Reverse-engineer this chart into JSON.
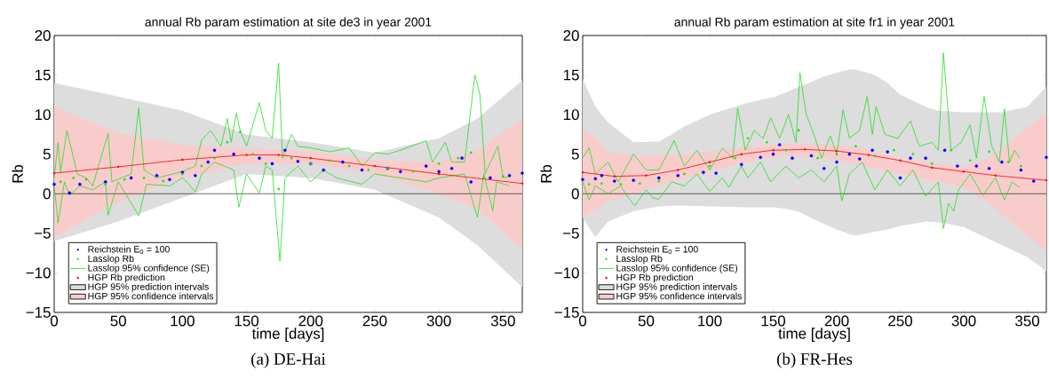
{
  "chart_data": [
    {
      "type": "line",
      "title": "annual Rb param estimation at site de3 in year 2001",
      "xlabel": "time [days]",
      "ylabel": "Rb",
      "annotations": [
        "(a) DE-Hai"
      ],
      "xlim": [
        0,
        365
      ],
      "ylim": [
        -15,
        20
      ],
      "xticks": [
        0,
        50,
        100,
        150,
        200,
        250,
        300,
        350
      ],
      "yticks": [
        {
          "value": -15,
          "label": "−15"
        },
        {
          "value": -10,
          "label": "−10"
        },
        {
          "value": -5,
          "label": "−5"
        },
        0,
        5,
        10,
        15,
        20
      ],
      "legend": "bottom left",
      "grid": false,
      "ref_lines": [
        {
          "axis": "y",
          "value": 0,
          "color": "#000000"
        }
      ],
      "series": [
        {
          "name": "Reichstein E$_{0}$ = 100",
          "type": "scatter",
          "color": "#0000ff",
          "x": [
            0,
            12,
            20,
            40,
            60,
            80,
            90,
            100,
            110,
            120,
            125,
            140,
            160,
            170,
            180,
            190,
            200,
            210,
            225,
            240,
            260,
            270,
            290,
            300,
            310,
            318,
            325,
            340,
            355,
            365
          ],
          "values": [
            1.2,
            0.1,
            1.2,
            1.5,
            2.0,
            2.3,
            1.8,
            2.7,
            2.3,
            4.0,
            5.5,
            5.0,
            4.5,
            3.8,
            5.5,
            4.1,
            3.8,
            3.0,
            4.0,
            3.0,
            3.2,
            2.8,
            3.5,
            2.8,
            3.2,
            4.5,
            1.5,
            2.0,
            2.3,
            2.6
          ]
        },
        {
          "name": "Lasslop Rb",
          "type": "scatter",
          "color": "#22dd22",
          "x": [
            5,
            15,
            25,
            40,
            55,
            70,
            85,
            100,
            115,
            125,
            135,
            145,
            155,
            165,
            175,
            185,
            200,
            215,
            230,
            245,
            260,
            280,
            300,
            315,
            325,
            335,
            350
          ],
          "values": [
            1.5,
            2.0,
            1.8,
            1.2,
            1.8,
            2.0,
            1.6,
            2.5,
            3.5,
            4.5,
            6.5,
            7.8,
            5.0,
            3.8,
            0.6,
            4.5,
            3.8,
            4.2,
            3.5,
            3.0,
            3.2,
            2.8,
            3.8,
            4.5,
            5.2,
            2.0,
            2.2
          ]
        },
        {
          "name": "Lasslop 95% confidence (SE)",
          "color": "#22dd22",
          "x": [
            0,
            3,
            5,
            10,
            18,
            25,
            30,
            42,
            45,
            60,
            66,
            70,
            80,
            100,
            110,
            115,
            122,
            130,
            135,
            138,
            142,
            145,
            150,
            160,
            165,
            170,
            175,
            178,
            185,
            190,
            200,
            215,
            230,
            240,
            250,
            260,
            270,
            290,
            295,
            305,
            310,
            320,
            328,
            332,
            336,
            346,
            350,
            355
          ],
          "values": [
            2,
            6.5,
            2.7,
            8,
            2.5,
            2.0,
            1.0,
            7.6,
            1.5,
            2.5,
            10.9,
            3,
            2,
            2.8,
            3.5,
            6.8,
            8,
            6.0,
            9.5,
            6.5,
            10.2,
            8.0,
            6.0,
            11.5,
            8,
            7,
            16.5,
            4.5,
            7.5,
            6,
            5.8,
            5.3,
            5.8,
            3.5,
            5.2,
            5.0,
            5.5,
            6.7,
            4.0,
            6.5,
            4.0,
            4.0,
            15,
            12.5,
            2.5,
            6,
            2.0,
            2.2
          ]
        },
        {
          "color": "#22dd22",
          "x": [
            0,
            3,
            8,
            12,
            20,
            30,
            40,
            42,
            50,
            66,
            72,
            90,
            100,
            105,
            110,
            115,
            125,
            140,
            144,
            150,
            160,
            165,
            170,
            176,
            180,
            190,
            200,
            210,
            220,
            240,
            250,
            270,
            290,
            300,
            320,
            330,
            335,
            342,
            345,
            355
          ],
          "values": [
            1,
            -3.7,
            1.5,
            -0.2,
            1.0,
            0.5,
            1.5,
            -2.7,
            1.5,
            -2.8,
            1.2,
            1.0,
            2.0,
            1.2,
            0.2,
            2.5,
            4.0,
            3.0,
            -1.7,
            2.5,
            0.1,
            3.5,
            3.0,
            -8.5,
            2.0,
            3.5,
            1.5,
            3.0,
            2.0,
            1.2,
            2.5,
            2.0,
            1.5,
            2.0,
            2.5,
            -3.0,
            2.5,
            -2.2,
            1.5,
            1.0
          ]
        },
        {
          "name": "HGP Rb prediction",
          "marker": "circle",
          "color": "#ff0000",
          "x": [
            0,
            50,
            100,
            150,
            175,
            200,
            250,
            300,
            365
          ],
          "values": [
            2.6,
            3.4,
            4.3,
            4.9,
            4.9,
            4.5,
            3.5,
            2.5,
            1.3
          ]
        },
        {
          "name": "HGP 95% prediction intervals",
          "type": "line",
          "color": "#dddddd",
          "x": [
            0,
            50,
            100,
            150,
            200,
            250,
            300,
            330,
            365
          ],
          "values": [
            null,
            null,
            null,
            null,
            null,
            null,
            null,
            null,
            null
          ],
          "lower": [
            -6,
            -3.5,
            -0.5,
            2.5,
            2,
            0.5,
            -3,
            -6.5,
            -11.8
          ],
          "upper": [
            14,
            12.3,
            10.5,
            7.5,
            6.5,
            5.2,
            7,
            9.5,
            14.3
          ]
        },
        {
          "name": "HGP 95% confidence intervals",
          "type": "line",
          "color": "#f9cccc",
          "x": [
            0,
            50,
            100,
            150,
            200,
            250,
            300,
            330,
            365
          ],
          "values": [
            null,
            null,
            null,
            null,
            null,
            null,
            null,
            null,
            null
          ],
          "lower": [
            -5.6,
            -1,
            2,
            3.8,
            3.8,
            2.5,
            0,
            -2,
            -7
          ],
          "upper": [
            11,
            7.7,
            6.2,
            5.7,
            5.4,
            4.2,
            4,
            5.5,
            9.5
          ]
        }
      ]
    },
    {
      "type": "line",
      "title": "annual Rb param estimation at site fr1 in year 2001",
      "xlabel": "time [days]",
      "ylabel": "Rb",
      "annotations": [
        "(b) FR-Hes"
      ],
      "xlim": [
        0,
        365
      ],
      "ylim": [
        -15,
        20
      ],
      "xticks": [
        0,
        50,
        100,
        150,
        200,
        250,
        300,
        350
      ],
      "yticks": [
        {
          "value": -15,
          "label": "−15"
        },
        {
          "value": -10,
          "label": "−10"
        },
        {
          "value": -5,
          "label": "−5"
        },
        0,
        5,
        10,
        15,
        20
      ],
      "legend": "bottom left",
      "grid": false,
      "ref_lines": [
        {
          "axis": "y",
          "value": 0,
          "color": "#000000"
        }
      ],
      "series": [
        {
          "name": "Reichstein E$_{0}$ = 100",
          "type": "scatter",
          "color": "#0000ff",
          "x": [
            0,
            10,
            15,
            25,
            40,
            60,
            75,
            95,
            105,
            125,
            140,
            150,
            155,
            165,
            180,
            190,
            200,
            210,
            218,
            228,
            240,
            250,
            258,
            270,
            285,
            295,
            310,
            320,
            330,
            345,
            355,
            365
          ],
          "values": [
            1.8,
            1.9,
            2.3,
            1.6,
            1.7,
            2.0,
            2.3,
            2.7,
            2.6,
            3.7,
            4.6,
            5.0,
            6.2,
            4.5,
            4.8,
            3.2,
            4.0,
            5.0,
            4.4,
            5.5,
            5.3,
            2.0,
            4.5,
            4.5,
            5.5,
            3.5,
            3.5,
            3.2,
            4.0,
            3.0,
            1.6,
            4.6
          ]
        },
        {
          "name": "Lasslop Rb",
          "type": "scatter",
          "color": "#22dd22",
          "x": [
            5,
            15,
            30,
            45,
            60,
            80,
            100,
            120,
            130,
            145,
            160,
            170,
            185,
            200,
            215,
            230,
            245,
            260,
            275,
            290,
            305,
            320,
            335,
            345
          ],
          "values": [
            1.2,
            1.3,
            1.2,
            1.3,
            1.6,
            2.5,
            3.5,
            4.5,
            7.0,
            6.5,
            5.5,
            8.0,
            4.5,
            5.0,
            6.0,
            4.8,
            5.5,
            5.0,
            3.8,
            5.5,
            4.2,
            5.3,
            4.0,
            3.5
          ]
        },
        {
          "name": "Lasslop 95% confidence (SE)",
          "color": "#22dd22",
          "x": [
            0,
            5,
            10,
            20,
            28,
            40,
            50,
            60,
            72,
            80,
            90,
            100,
            110,
            118,
            122,
            128,
            135,
            142,
            148,
            155,
            162,
            168,
            171,
            176,
            182,
            188,
            195,
            200,
            205,
            210,
            218,
            224,
            228,
            231,
            238,
            248,
            258,
            265,
            275,
            280,
            284,
            290,
            298,
            305,
            310,
            316,
            322,
            328,
            332,
            336,
            340,
            344
          ],
          "values": [
            4.5,
            5.8,
            2.5,
            4.0,
            1.5,
            5.0,
            3.0,
            3.0,
            6.7,
            3.5,
            5.5,
            3.0,
            5.8,
            4.5,
            10.8,
            5.5,
            8.0,
            7.0,
            9.6,
            7.0,
            10.0,
            6.5,
            15.3,
            10.0,
            7.5,
            4.5,
            7.3,
            5.0,
            10.6,
            7.0,
            8.0,
            12.3,
            7.5,
            11.0,
            7.5,
            7.0,
            9.2,
            6.0,
            6.5,
            5.5,
            17.8,
            5.5,
            6.5,
            8.7,
            4.5,
            12.3,
            6.0,
            4.0,
            10.7,
            4.0,
            5.5,
            4.5
          ]
        },
        {
          "color": "#22dd22",
          "x": [
            0,
            5,
            10,
            20,
            30,
            35,
            41,
            50,
            55,
            60,
            70,
            80,
            90,
            100,
            110,
            115,
            125,
            130,
            140,
            148,
            160,
            170,
            180,
            190,
            200,
            204,
            210,
            220,
            230,
            240,
            250,
            260,
            270,
            280,
            284,
            288,
            292,
            296,
            305,
            315,
            325,
            332,
            338,
            344
          ],
          "values": [
            1.5,
            -0.8,
            1.0,
            0.0,
            1.0,
            -0.3,
            -1.5,
            0.5,
            -0.5,
            -0.7,
            1.5,
            1.0,
            2.5,
            0.3,
            2.0,
            0.8,
            3.5,
            2.0,
            4.0,
            1.5,
            3.5,
            2.0,
            3.0,
            1.5,
            3.5,
            -0.9,
            2.5,
            4.0,
            0.5,
            3.0,
            1.0,
            3.0,
            -0.3,
            1.5,
            -4.4,
            -1.2,
            -2.2,
            0.5,
            2.5,
            -0.2,
            2.0,
            -0.8,
            1.5,
            0.8
          ]
        },
        {
          "name": "HGP Rb prediction",
          "marker": "circle",
          "color": "#ff0000",
          "x": [
            0,
            25,
            50,
            75,
            100,
            125,
            150,
            175,
            200,
            225,
            250,
            275,
            300,
            325,
            365
          ],
          "values": [
            2.7,
            2.2,
            2.3,
            3,
            4,
            5,
            5.5,
            5.6,
            5.4,
            4.9,
            4.2,
            3.3,
            2.8,
            2.3,
            1.7
          ]
        },
        {
          "name": "HGP 95% prediction intervals",
          "type": "line",
          "color": "#dddddd",
          "x": [
            0,
            10,
            20,
            40,
            60,
            70,
            80,
            100,
            130,
            150,
            160,
            170,
            190,
            200,
            210,
            215,
            230,
            240,
            250,
            270,
            280,
            300,
            330,
            350,
            365
          ],
          "values": [
            null,
            null,
            null,
            null,
            null,
            null,
            null,
            null,
            null,
            null,
            null,
            null,
            null,
            null,
            null,
            null,
            null,
            null,
            null,
            null,
            null,
            null,
            null,
            null,
            null
          ],
          "lower": [
            -3,
            -5.5,
            -3.5,
            -2.2,
            -1.6,
            -1.5,
            -1.5,
            -1.6,
            -1.7,
            -1.7,
            -1.9,
            -2.3,
            -3.8,
            -4.5,
            -5.1,
            -5.3,
            -4.8,
            -4.5,
            -4.1,
            -3.5,
            -3.6,
            -4.2,
            -6.5,
            -8,
            -9.8
          ],
          "upper": [
            14.5,
            11,
            9.0,
            6.5,
            6.6,
            7.5,
            8.5,
            10,
            11.5,
            12.2,
            12.8,
            13.5,
            14.8,
            15.3,
            15.7,
            15.7,
            15,
            14,
            12.5,
            11,
            10.5,
            10.3,
            10.3,
            11,
            13.5
          ]
        },
        {
          "name": "HGP 95% confidence intervals",
          "type": "line",
          "color": "#f9cccc",
          "x": [
            0,
            20,
            40,
            70,
            100,
            130,
            160,
            190,
            220,
            250,
            280,
            300,
            320,
            340,
            365
          ],
          "values": [
            null,
            null,
            null,
            null,
            null,
            null,
            null,
            null,
            null,
            null,
            null,
            null,
            null,
            null,
            null
          ],
          "lower": [
            -3,
            -1,
            0,
            1.5,
            2.8,
            4.0,
            4.8,
            4.5,
            3.6,
            2.5,
            1.5,
            0.8,
            -1.2,
            -4,
            -7.3
          ],
          "upper": [
            8.5,
            5.3,
            4.8,
            4.9,
            5.3,
            6.0,
            6.3,
            6.3,
            5.8,
            4.4,
            3.8,
            3.5,
            4.5,
            7,
            10.3
          ]
        }
      ]
    }
  ]
}
